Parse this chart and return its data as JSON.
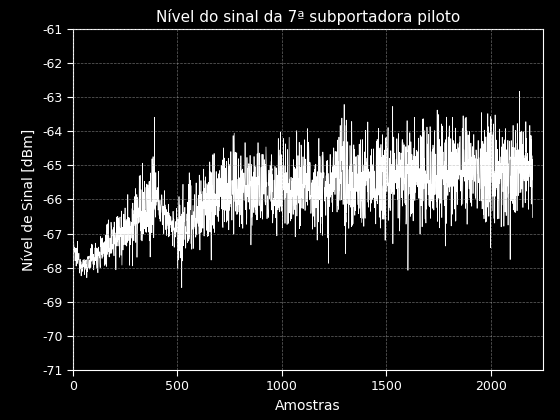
{
  "title": "Nível do sinal da 7ª subportadora piloto",
  "xlabel": "Amostras",
  "ylabel": "Nível de Sinal [dBm]",
  "xlim": [
    0,
    2250
  ],
  "ylim": [
    -71,
    -61
  ],
  "yticks": [
    -71,
    -70,
    -69,
    -68,
    -67,
    -66,
    -65,
    -64,
    -63,
    -62,
    -61
  ],
  "xticks": [
    0,
    500,
    1000,
    1500,
    2000
  ],
  "background_color": "#000000",
  "figure_color": "#000000",
  "line_color": "#ffffff",
  "grid_color": "#aaaaaa",
  "text_color": "#ffffff",
  "n_samples": 2200,
  "seed": 12345,
  "title_fontsize": 11,
  "label_fontsize": 10,
  "tick_fontsize": 9
}
